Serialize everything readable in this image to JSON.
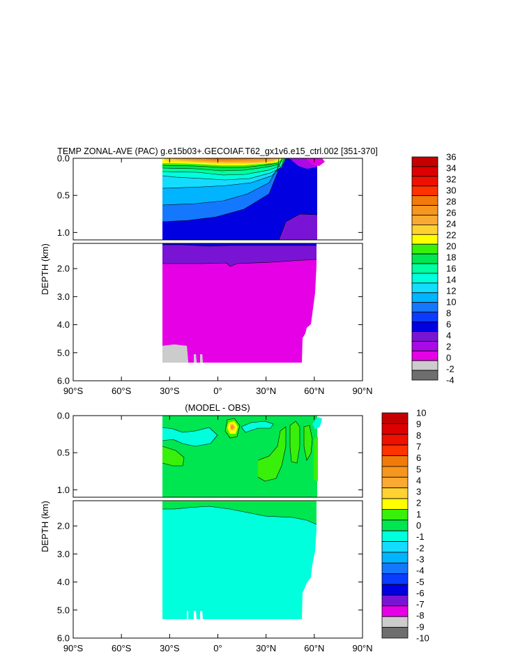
{
  "chart_data": [
    {
      "type": "heatmap",
      "title": "TEMP ZONAL-AVE (PAC) g.e15b03+.GECOIAF.T62_gx1v6.e15_ctrl.002 [351-370]",
      "xlabel": "",
      "ylabel": "DEPTH (km)",
      "x_ticks": [
        "90°S",
        "60°S",
        "30°S",
        "0°",
        "30°N",
        "60°N",
        "90°N"
      ],
      "y_ticks_upper": [
        "0.0",
        "0.5",
        "1.0"
      ],
      "y_ticks_lower": [
        "2.0",
        "3.0",
        "4.0",
        "5.0",
        "6.0"
      ],
      "colorbar_labels": [
        "36",
        "34",
        "32",
        "30",
        "28",
        "26",
        "24",
        "22",
        "20",
        "18",
        "16",
        "14",
        "12",
        "10",
        "8",
        "6",
        "4",
        "2",
        "0",
        "-2",
        "-4"
      ],
      "colors": [
        "#c40000",
        "#dd0000",
        "#ee1100",
        "#ff3300",
        "#f27a0a",
        "#f5961e",
        "#faaa32",
        "#ffd232",
        "#ffff00",
        "#39f00a",
        "#00e650",
        "#00ffa0",
        "#00ffdc",
        "#14dcff",
        "#00b4ff",
        "#1478ff",
        "#0a3cff",
        "#0000e1",
        "#7a14d4",
        "#aa0ae6",
        "#e600e6",
        "#cccccc",
        "#6e6e6e"
      ],
      "zonal_profile_surface": [
        {
          "lat": -33,
          "value": 24
        },
        {
          "lat": -20,
          "value": 26
        },
        {
          "lat": 0,
          "value": 28
        },
        {
          "lat": 10,
          "value": 29
        },
        {
          "lat": 30,
          "value": 24
        },
        {
          "lat": 40,
          "value": 16
        },
        {
          "lat": 50,
          "value": 6
        },
        {
          "lat": 62,
          "value": 2
        }
      ]
    },
    {
      "type": "heatmap",
      "title": "(MODEL - OBS)",
      "xlabel": "",
      "ylabel": "DEPTH (km)",
      "x_ticks": [
        "90°S",
        "60°S",
        "30°S",
        "0°",
        "30°N",
        "60°N",
        "90°N"
      ],
      "y_ticks_upper": [
        "0.0",
        "0.5",
        "1.0"
      ],
      "y_ticks_lower": [
        "2.0",
        "3.0",
        "4.0",
        "5.0",
        "6.0"
      ],
      "colorbar_labels": [
        "10",
        "9",
        "8",
        "7",
        "6",
        "5",
        "4",
        "3",
        "2",
        "1",
        "0",
        "-1",
        "-2",
        "-3",
        "-4",
        "-5",
        "-6",
        "-7",
        "-8",
        "-9",
        "-10"
      ],
      "colors": [
        "#c40000",
        "#dd0000",
        "#ee1100",
        "#ff3300",
        "#f27a0a",
        "#f5961e",
        "#faaa32",
        "#ffd232",
        "#ffff00",
        "#39f00a",
        "#00e650",
        "#00ffdc",
        "#14dcff",
        "#00b4ff",
        "#1478ff",
        "#0a3cff",
        "#0000e1",
        "#7a14d4",
        "#e600e6",
        "#cccccc",
        "#6e6e6e"
      ]
    }
  ]
}
